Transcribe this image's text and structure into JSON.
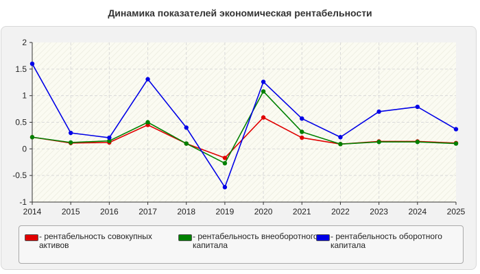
{
  "chart_data": {
    "type": "line",
    "title": "Динамика показателей экономическая рентабельности",
    "xlabel": "",
    "ylabel": "",
    "x": [
      "2014",
      "2015",
      "2016",
      "2017",
      "2018",
      "2019",
      "2020",
      "2021",
      "2022",
      "2023",
      "2024",
      "2025"
    ],
    "ylim": [
      -1,
      2
    ],
    "y_ticks": [
      "2",
      "1.5",
      "1",
      "0.5",
      "0",
      "-0.5",
      "-1"
    ],
    "grid": true,
    "legend_position": "bottom",
    "series": [
      {
        "name": "- рентабельность совокупных активов",
        "color": "#e00000",
        "values": [
          0.22,
          0.11,
          0.12,
          0.45,
          0.1,
          -0.17,
          0.59,
          0.21,
          0.09,
          0.14,
          0.14,
          0.11
        ]
      },
      {
        "name": "- рентабельность внеоборотного капитала",
        "color": "#008000",
        "values": [
          0.22,
          0.12,
          0.15,
          0.5,
          0.1,
          -0.27,
          1.08,
          0.32,
          0.09,
          0.13,
          0.13,
          0.1
        ]
      },
      {
        "name": "- рентабельность оборотного капитала",
        "color": "#0000e6",
        "values": [
          1.6,
          0.3,
          0.21,
          1.31,
          0.4,
          -0.72,
          1.26,
          0.57,
          0.22,
          0.7,
          0.79,
          0.37
        ]
      }
    ]
  }
}
